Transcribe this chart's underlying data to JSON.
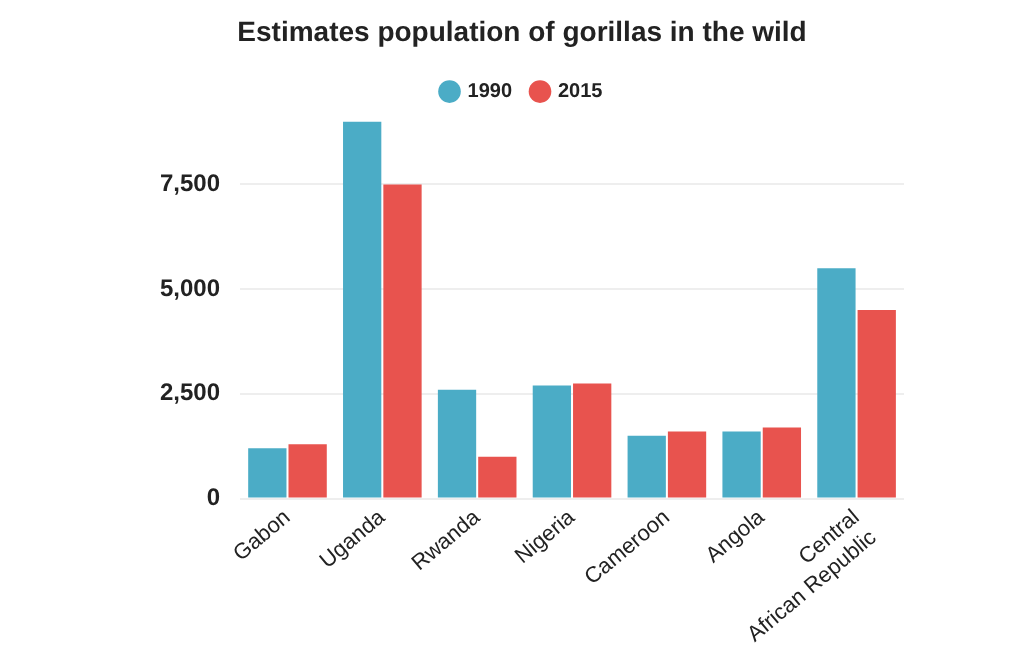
{
  "chart_data": {
    "type": "bar",
    "title": "Estimates population of gorillas in the wild",
    "categories": [
      "Gabon",
      "Uganda",
      "Rwanda",
      "Nigeria",
      "Cameroon",
      "Angola",
      "Central African Republic"
    ],
    "series": [
      {
        "name": "1990",
        "color": "#4bacc6",
        "values": [
          1200,
          9000,
          2600,
          2700,
          1500,
          1600,
          5500
        ]
      },
      {
        "name": "2015",
        "color": "#e8534e",
        "values": [
          1300,
          7500,
          1000,
          2750,
          1600,
          1700,
          4500
        ]
      }
    ],
    "ylim": [
      0,
      9000
    ],
    "yticks": [
      0,
      {
        "value": 2500,
        "label": "2,500"
      },
      {
        "value": 5000,
        "label": "5,000"
      },
      {
        "value": 7500,
        "label": "7,500"
      }
    ],
    "grid": "y",
    "legend": "top"
  }
}
